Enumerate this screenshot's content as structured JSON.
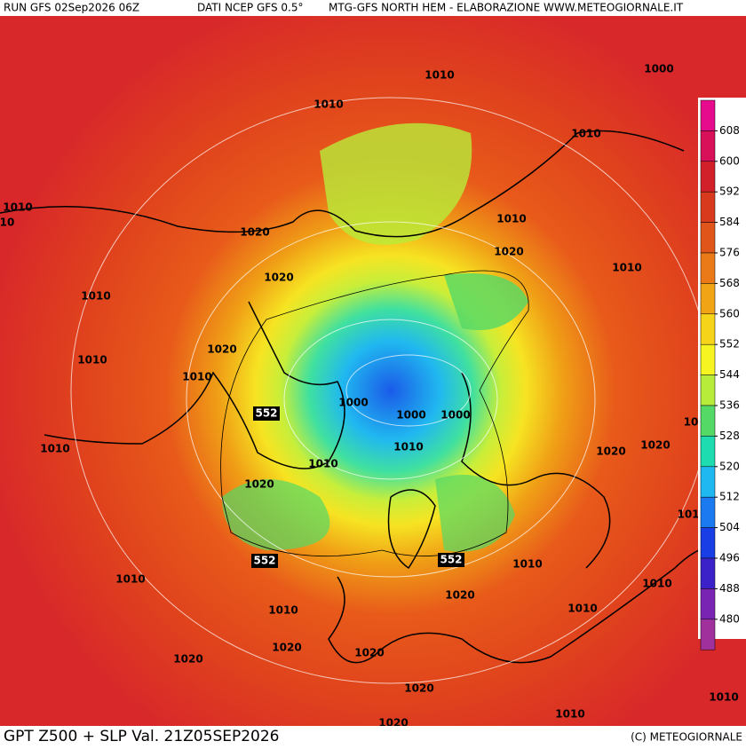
{
  "header": {
    "run": "RUN GFS 02Sep2026 06Z",
    "source": "DATI NCEP GFS 0.5°",
    "product": "MTG-GFS NORTH HEM - ELABORAZIONE WWW.METEOGIORNALE.IT"
  },
  "footer": {
    "caption": "GPT Z500 + SLP Val. 21Z05SEP2026",
    "copyright": "(C) METEOGIORNALE"
  },
  "colorbar": {
    "ticks": [
      608,
      600,
      592,
      584,
      576,
      568,
      560,
      552,
      544,
      536,
      528,
      520,
      512,
      504,
      496,
      488,
      480
    ],
    "colors": [
      "#e60a8c",
      "#d8105a",
      "#d2202a",
      "#d83a1e",
      "#e0561a",
      "#ea7a18",
      "#f0a416",
      "#f5d41a",
      "#f6f522",
      "#b8ec3a",
      "#54d866",
      "#1edcb0",
      "#20b8f0",
      "#1c7af0",
      "#1a3ee6",
      "#3a22c8",
      "#7a24b4",
      "#a0309c"
    ]
  },
  "isobar_labels": [
    1010,
    1000,
    1010,
    1010,
    1010,
    10,
    1020,
    1010,
    1020,
    1010,
    1020,
    1010,
    1020,
    1010,
    1010,
    1000,
    1000,
    1000,
    10,
    1010,
    1020,
    1020,
    1010,
    1010,
    1020,
    101,
    1010,
    1010,
    1010,
    1020,
    1010,
    1010,
    1020,
    1020,
    1020,
    1020,
    1020,
    1010,
    1010
  ],
  "height_labels": [
    552,
    552,
    552
  ]
}
